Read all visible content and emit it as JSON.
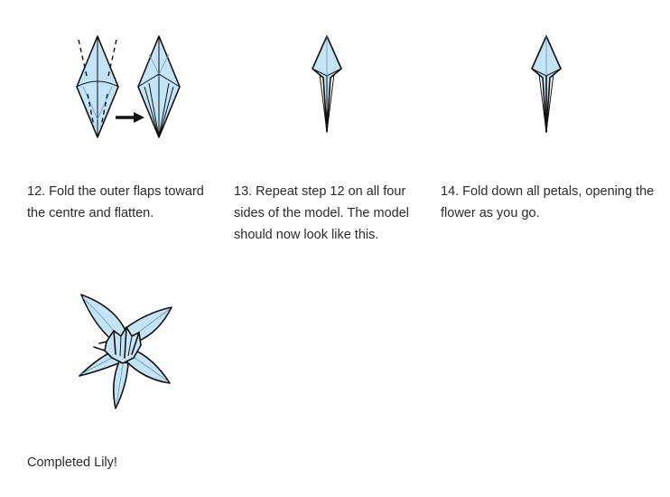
{
  "steps": [
    {
      "caption": "12. Fold the outer flaps toward the centre and flatten.",
      "icon": "fold-outer-flaps-diagram"
    },
    {
      "caption": "13. Repeat step 12 on all four sides of the model. The model should now look like this.",
      "icon": "narrow-kite-diagram"
    },
    {
      "caption": "14. Fold down all petals, opening the flower as you go.",
      "icon": "narrow-kite-diagram"
    }
  ],
  "final": {
    "caption": "Completed Lily!",
    "icon": "lily-flower-diagram"
  },
  "colors": {
    "paper": "#c3e3f7",
    "outline": "#111111",
    "text": "#2b2b2b"
  }
}
